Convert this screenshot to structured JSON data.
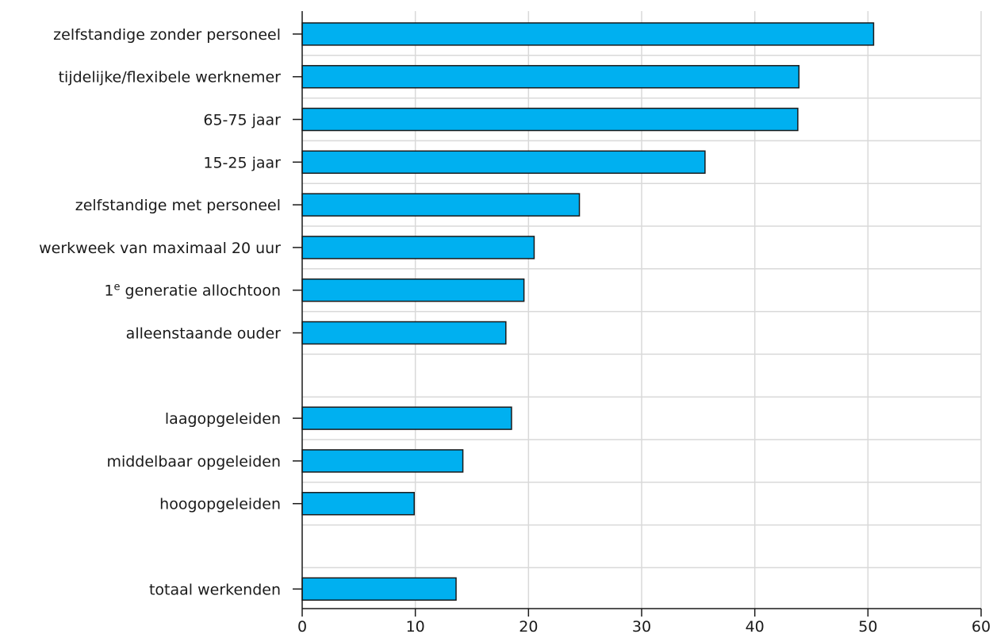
{
  "chart_data": {
    "type": "bar",
    "orientation": "horizontal",
    "categories": [
      "zelfstandige zonder personeel",
      "tijdelijke/flexibele werknemer",
      "65-75 jaar",
      "15-25 jaar",
      "zelfstandige met personeel",
      "werkweek van maximaal 20 uur",
      "1e generatie allochtoon",
      "alleenstaande ouder",
      "",
      "laagopgeleiden",
      "middelbaar opgeleiden",
      "hoogopgeleiden",
      "",
      "totaal werkenden"
    ],
    "values": [
      50.5,
      43.9,
      43.8,
      35.6,
      24.5,
      20.5,
      19.6,
      18.0,
      null,
      18.5,
      14.2,
      9.9,
      null,
      13.6
    ],
    "xlim": [
      0,
      60
    ],
    "xticks": [
      0,
      10,
      20,
      30,
      40,
      50,
      60
    ],
    "title": "",
    "xlabel": "",
    "ylabel": "",
    "grid": true,
    "bar_color": "#00b0f0",
    "outline_color": "#1a1a1a",
    "grid_color": "#d9d9d9"
  }
}
